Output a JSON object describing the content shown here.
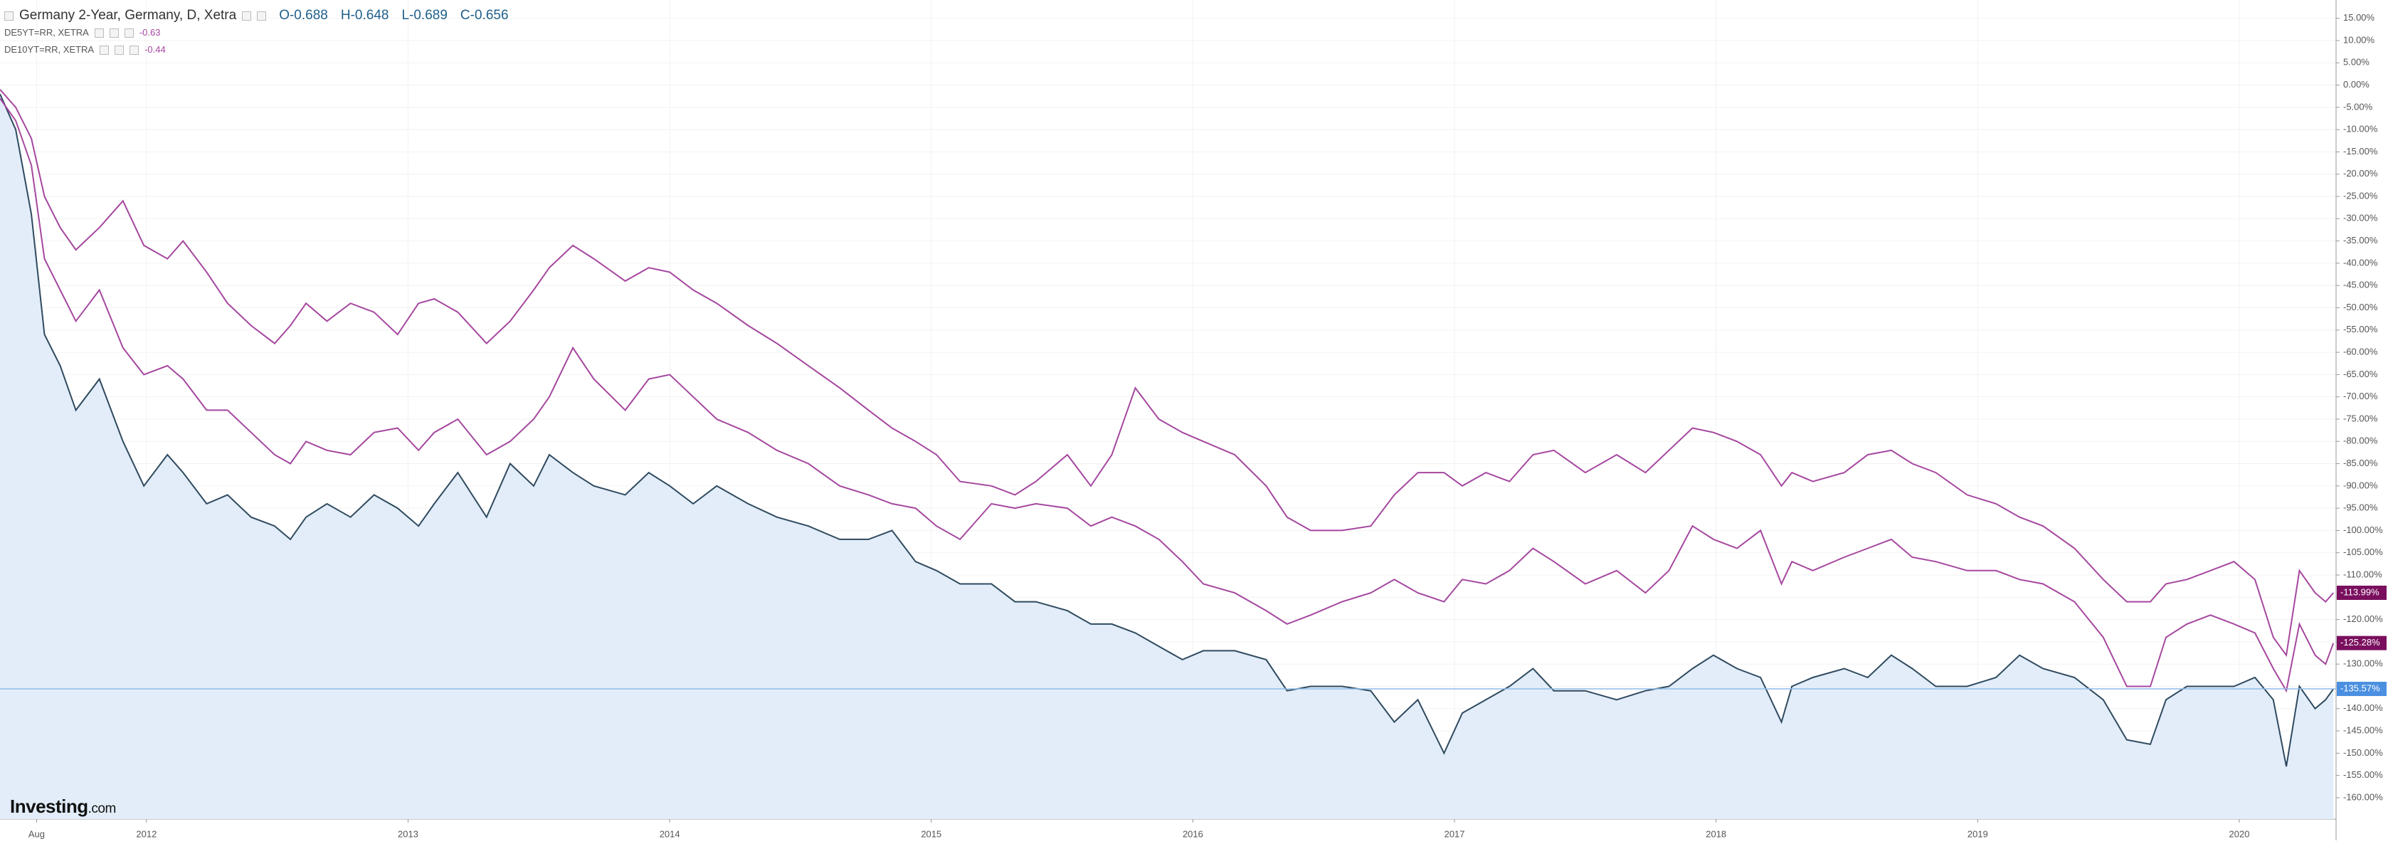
{
  "chart_data": {
    "type": "line",
    "x": [
      2011.44,
      2011.5,
      2011.56,
      2011.61,
      2011.67,
      2011.73,
      2011.82,
      2011.91,
      2011.99,
      2012.08,
      2012.14,
      2012.23,
      2012.31,
      2012.4,
      2012.49,
      2012.55,
      2012.61,
      2012.69,
      2012.78,
      2012.87,
      2012.96,
      2013.04,
      2013.1,
      2013.19,
      2013.3,
      2013.39,
      2013.48,
      2013.54,
      2013.63,
      2013.71,
      2013.83,
      2013.92,
      2014.0,
      2014.09,
      2014.18,
      2014.3,
      2014.41,
      2014.53,
      2014.65,
      2014.76,
      2014.85,
      2014.94,
      2015.02,
      2015.11,
      2015.23,
      2015.32,
      2015.4,
      2015.52,
      2015.61,
      2015.69,
      2015.78,
      2015.87,
      2015.96,
      2016.04,
      2016.16,
      2016.28,
      2016.36,
      2016.45,
      2016.57,
      2016.68,
      2016.77,
      2016.86,
      2016.96,
      2017.03,
      2017.12,
      2017.21,
      2017.3,
      2017.38,
      2017.5,
      2017.62,
      2017.73,
      2017.82,
      2017.91,
      2017.99,
      2018.08,
      2018.17,
      2018.25,
      2018.29,
      2018.37,
      2018.49,
      2018.58,
      2018.67,
      2018.75,
      2018.84,
      2018.96,
      2019.07,
      2019.16,
      2019.25,
      2019.37,
      2019.48,
      2019.57,
      2019.66,
      2019.72,
      2019.8,
      2019.89,
      2019.98,
      2020.06,
      2020.13,
      2020.18,
      2020.23,
      2020.29,
      2020.33,
      2020.36
    ],
    "series": [
      {
        "name": "Germany 2-Year, Germany, D, Xetra",
        "color": "#2f4a5f",
        "area_color": "#e2edf9",
        "tag_color": "#4a8fe0",
        "ohlc": [
          {
            "label": "O",
            "value": -0.688
          },
          {
            "label": "H",
            "value": -0.648
          },
          {
            "label": "L",
            "value": -0.689
          },
          {
            "label": "C",
            "value": -0.656
          }
        ],
        "last_label": "-135.57%",
        "values": [
          -2,
          -10,
          -29,
          -56,
          -63,
          -73,
          -66,
          -80,
          -90,
          -83,
          -87,
          -94,
          -92,
          -97,
          -99,
          -102,
          -97,
          -94,
          -97,
          -92,
          -95,
          -99,
          -94,
          -87,
          -97,
          -85,
          -90,
          -83,
          -87,
          -90,
          -92,
          -87,
          -90,
          -94,
          -90,
          -94,
          -97,
          -99,
          -102,
          -102,
          -100,
          -107,
          -109,
          -112,
          -112,
          -116,
          -116,
          -118,
          -121,
          -121,
          -123,
          -126,
          -129,
          -127,
          -127,
          -129,
          -136,
          -135,
          -135,
          -136,
          -143,
          -138,
          -150,
          -141,
          -138,
          -135,
          -131,
          -136,
          -136,
          -138,
          -136,
          -135,
          -131,
          -128,
          -131,
          -133,
          -143,
          -135,
          -133,
          -131,
          -133,
          -128,
          -131,
          -135,
          -135,
          -133,
          -128,
          -131,
          -133,
          -138,
          -147,
          -148,
          -138,
          -135,
          -135,
          -135,
          -133,
          -138,
          -153,
          -135,
          -140,
          -138,
          -135.57
        ]
      },
      {
        "name": "DE5YT=RR, XETRA",
        "color": "#a5479f",
        "tag_color": "#7a0f5e",
        "legend_value": -0.63,
        "last_label": "-125.28%",
        "values": [
          -3,
          -8,
          -18,
          -39,
          -46,
          -53,
          -46,
          -59,
          -65,
          -63,
          -66,
          -73,
          -73,
          -78,
          -83,
          -85,
          -80,
          -82,
          -83,
          -78,
          -77,
          -82,
          -78,
          -75,
          -83,
          -80,
          -75,
          -70,
          -59,
          -66,
          -73,
          -66,
          -65,
          -70,
          -75,
          -78,
          -82,
          -85,
          -90,
          -92,
          -94,
          -95,
          -99,
          -102,
          -94,
          -95,
          -94,
          -95,
          -99,
          -97,
          -99,
          -102,
          -107,
          -112,
          -114,
          -118,
          -121,
          -119,
          -116,
          -114,
          -111,
          -114,
          -116,
          -111,
          -112,
          -109,
          -104,
          -107,
          -112,
          -109,
          -114,
          -109,
          -99,
          -102,
          -104,
          -100,
          -112,
          -107,
          -109,
          -106,
          -104,
          -102,
          -106,
          -107,
          -109,
          -109,
          -111,
          -112,
          -116,
          -124,
          -135,
          -135,
          -124,
          -121,
          -119,
          -121,
          -123,
          -131,
          -136,
          -121,
          -128,
          -130,
          -125.28
        ]
      },
      {
        "name": "DE10YT=RR, XETRA",
        "color": "#a5479f",
        "tag_color": "#7a0f5e",
        "legend_value": -0.44,
        "last_label": "-113.99%",
        "values": [
          -1,
          -5,
          -12,
          -25,
          -32,
          -37,
          -32,
          -26,
          -36,
          -39,
          -35,
          -42,
          -49,
          -54,
          -58,
          -54,
          -49,
          -53,
          -49,
          -51,
          -56,
          -49,
          -48,
          -51,
          -58,
          -53,
          -46,
          -41,
          -36,
          -39,
          -44,
          -41,
          -42,
          -46,
          -49,
          -54,
          -58,
          -63,
          -68,
          -73,
          -77,
          -80,
          -83,
          -89,
          -90,
          -92,
          -89,
          -83,
          -90,
          -83,
          -68,
          -75,
          -78,
          -80,
          -83,
          -90,
          -97,
          -100,
          -100,
          -99,
          -92,
          -87,
          -87,
          -90,
          -87,
          -89,
          -83,
          -82,
          -87,
          -83,
          -87,
          -82,
          -77,
          -78,
          -80,
          -83,
          -90,
          -87,
          -89,
          -87,
          -83,
          -82,
          -85,
          -87,
          -92,
          -94,
          -97,
          -99,
          -104,
          -111,
          -116,
          -116,
          -112,
          -111,
          -109,
          -107,
          -111,
          -124,
          -128,
          -109,
          -114,
          -116,
          -113.99
        ]
      }
    ],
    "xlim": [
      2011.44,
      2020.37
    ],
    "xticks": [
      {
        "value": 2011.58,
        "label": "Aug"
      },
      2012,
      2013,
      2014,
      2015,
      2016,
      2017,
      2018,
      2019,
      2020
    ],
    "ylim": [
      -164.8,
      19.1
    ],
    "yticks": [
      {
        "value": 15,
        "label": "15.00%"
      },
      {
        "value": 10,
        "label": "10.00%"
      },
      {
        "value": 5,
        "label": "5.00%"
      },
      {
        "value": 0,
        "label": "0.00%"
      },
      {
        "value": -5,
        "label": "-5.00%"
      },
      {
        "value": -10,
        "label": "-10.00%"
      },
      {
        "value": -15,
        "label": "-15.00%"
      },
      {
        "value": -20,
        "label": "-20.00%"
      },
      {
        "value": -25,
        "label": "-25.00%"
      },
      {
        "value": -30,
        "label": "-30.00%"
      },
      {
        "value": -35,
        "label": "-35.00%"
      },
      {
        "value": -40,
        "label": "-40.00%"
      },
      {
        "value": -45,
        "label": "-45.00%"
      },
      {
        "value": -50,
        "label": "-50.00%"
      },
      {
        "value": -55,
        "label": "-55.00%"
      },
      {
        "value": -60,
        "label": "-60.00%"
      },
      {
        "value": -65,
        "label": "-65.00%"
      },
      {
        "value": -70,
        "label": "-70.00%"
      },
      {
        "value": -75,
        "label": "-75.00%"
      },
      {
        "value": -80,
        "label": "-80.00%"
      },
      {
        "value": -85,
        "label": "-85.00%"
      },
      {
        "value": -90,
        "label": "-90.00%"
      },
      {
        "value": -95,
        "label": "-95.00%"
      },
      {
        "value": -100,
        "label": "-100.00%"
      },
      {
        "value": -105,
        "label": "-105.00%"
      },
      {
        "value": -110,
        "label": "-110.00%"
      },
      {
        "value": -115,
        "label": "-115.00%"
      },
      {
        "value": -120,
        "label": "-120.00%"
      },
      {
        "value": -125,
        "label": "-125.00%"
      },
      {
        "value": -130,
        "label": "-130.00%"
      },
      {
        "value": -135,
        "label": "-135.00%"
      },
      {
        "value": -140,
        "label": "-140.00%"
      },
      {
        "value": -145,
        "label": "-145.00%"
      },
      {
        "value": -150,
        "label": "-150.00%"
      },
      {
        "value": -155,
        "label": "-155.00%"
      },
      {
        "value": -160,
        "label": "-160.00%"
      }
    ],
    "grid": true,
    "logo": {
      "name": "Investing",
      "suffix": ".com"
    }
  }
}
